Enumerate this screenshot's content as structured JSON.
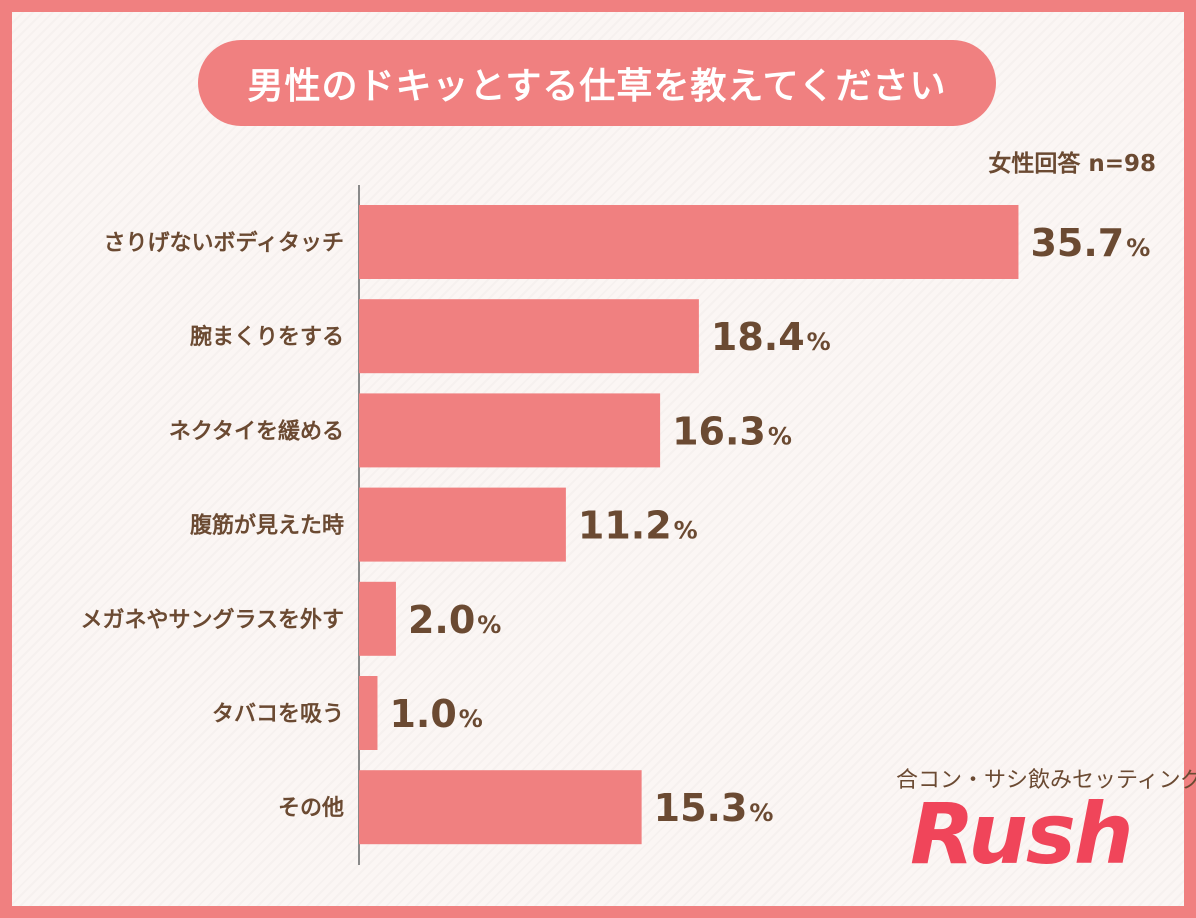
{
  "title": "男性のドキッとする仕草を教えてください",
  "note": "女性回答 n=98",
  "brand": {
    "subtitle": "合コン・サシ飲みセッティング",
    "logo": "Rush"
  },
  "colors": {
    "bar": "#f08080",
    "text": "#6b4a32",
    "logo": "#f0455a"
  },
  "chart_data": {
    "type": "bar",
    "orientation": "horizontal",
    "categories": [
      "さりげないボディタッチ",
      "腕まくりをする",
      "ネクタイを緩める",
      "腹筋が見えた時",
      "メガネやサングラスを外す",
      "タバコを吸う",
      "その他"
    ],
    "values": [
      35.7,
      18.4,
      16.3,
      11.2,
      2.0,
      1.0,
      15.3
    ],
    "value_labels": [
      "35.7",
      "18.4",
      "16.3",
      "11.2",
      "2.0",
      "1.0",
      "15.3"
    ],
    "unit": "%",
    "xlim": [
      0,
      36
    ],
    "grid": false
  }
}
